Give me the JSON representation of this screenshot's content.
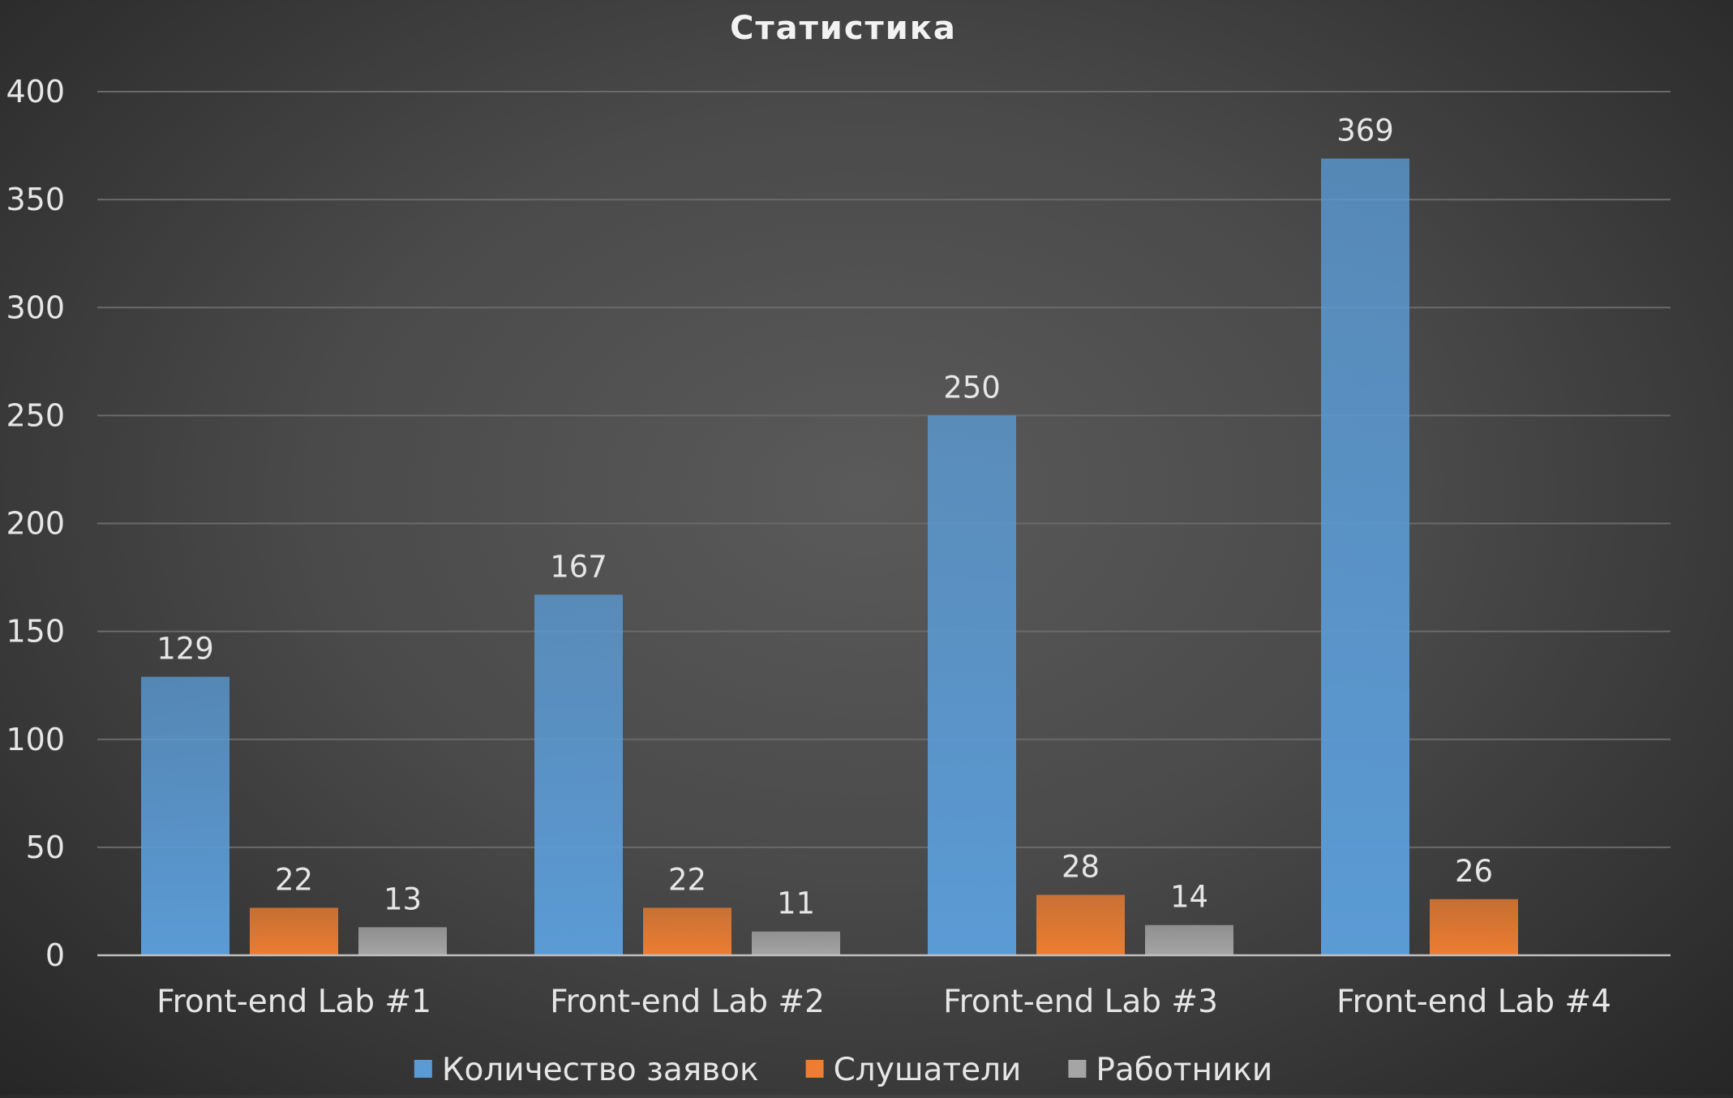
{
  "chart_data": {
    "type": "bar",
    "title": "Статистика",
    "categories": [
      "Front-end Lab #1",
      "Front-end Lab #2",
      "Front-end Lab #3",
      "Front-end Lab #4"
    ],
    "series": [
      {
        "name": "Количество заявок",
        "values": [
          129,
          167,
          250,
          369
        ],
        "color": "#5b9bd5"
      },
      {
        "name": "Слушатели",
        "values": [
          22,
          22,
          28,
          26
        ],
        "color": "#ed7d31"
      },
      {
        "name": "Работники",
        "values": [
          13,
          11,
          14,
          null
        ],
        "color": "#a5a5a5"
      }
    ],
    "ylim": [
      0,
      400
    ],
    "yticks": [
      "0",
      "50",
      "100",
      "150",
      "200",
      "250",
      "300",
      "350",
      "400"
    ],
    "grid": true,
    "legend": "bottom"
  }
}
